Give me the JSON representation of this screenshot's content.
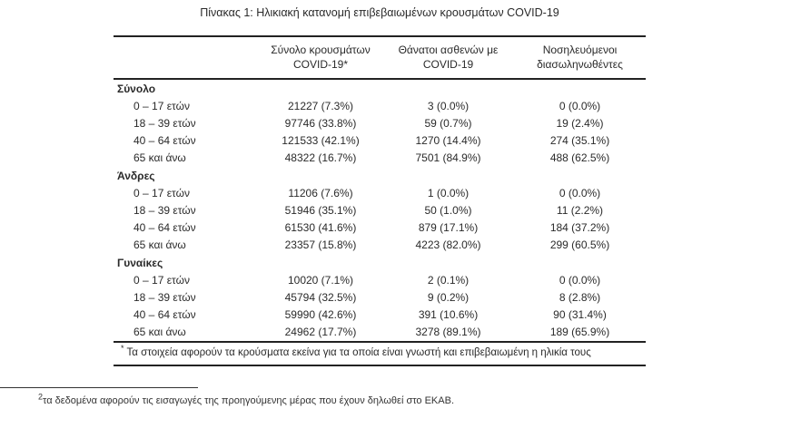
{
  "page": {
    "title": "Πίνακας 1: Ηλικιακή κατανομή επιβεβαιωμένων κρουσμάτων COVID-19"
  },
  "table": {
    "header": {
      "cases": [
        "Σύνολο κρουσμάτων",
        "COVID-19*"
      ],
      "deaths": [
        "Θάνατοι ασθενών με",
        "COVID-19"
      ],
      "intubated": [
        "Νοσηλευόμενοι",
        "διασωληνωθέντες"
      ]
    },
    "sections": [
      {
        "name": "Σύνολο",
        "rows": [
          {
            "label": "0 – 17 ετών",
            "cases": "21227 (7.3%)",
            "deaths": "3 (0.0%)",
            "intubated": "0 (0.0%)"
          },
          {
            "label": "18 – 39 ετών",
            "cases": "97746 (33.8%)",
            "deaths": "59 (0.7%)",
            "intubated": "19 (2.4%)"
          },
          {
            "label": "40 – 64 ετών",
            "cases": "121533 (42.1%)",
            "deaths": "1270 (14.4%)",
            "intubated": "274 (35.1%)"
          },
          {
            "label": "65 και άνω",
            "cases": "48322 (16.7%)",
            "deaths": "7501 (84.9%)",
            "intubated": "488 (62.5%)"
          }
        ]
      },
      {
        "name": "Άνδρες",
        "rows": [
          {
            "label": "0 – 17 ετών",
            "cases": "11206 (7.6%)",
            "deaths": "1 (0.0%)",
            "intubated": "0 (0.0%)"
          },
          {
            "label": "18 – 39 ετών",
            "cases": "51946 (35.1%)",
            "deaths": "50 (1.0%)",
            "intubated": "11 (2.2%)"
          },
          {
            "label": "40 – 64 ετών",
            "cases": "61530 (41.6%)",
            "deaths": "879 (17.1%)",
            "intubated": "184 (37.2%)"
          },
          {
            "label": "65 και άνω",
            "cases": "23357 (15.8%)",
            "deaths": "4223 (82.0%)",
            "intubated": "299 (60.5%)"
          }
        ]
      },
      {
        "name": "Γυναίκες",
        "rows": [
          {
            "label": "0 – 17 ετών",
            "cases": "10020 (7.1%)",
            "deaths": "2 (0.1%)",
            "intubated": "0 (0.0%)"
          },
          {
            "label": "18 – 39 ετών",
            "cases": "45794 (32.5%)",
            "deaths": "9 (0.2%)",
            "intubated": "8 (2.8%)"
          },
          {
            "label": "40 – 64 ετών",
            "cases": "59990 (42.6%)",
            "deaths": "391 (10.6%)",
            "intubated": "90 (31.4%)"
          },
          {
            "label": "65 και άνω",
            "cases": "24962 (17.7%)",
            "deaths": "3278 (89.1%)",
            "intubated": "189 (65.9%)"
          }
        ]
      }
    ],
    "footnote": {
      "marker": "*",
      "text": " Τα στοιχεία αφορούν τα κρούσματα εκείνα για τα οποία είναι γνωστή και επιβεβαιωμένη η ηλικία τους"
    }
  },
  "page_footnote": {
    "marker": "2",
    "text": "τα δεδομένα αφορούν τις εισαγωγές της προηγούμενης μέρας που έχουν δηλωθεί στο ΕΚΑΒ."
  }
}
